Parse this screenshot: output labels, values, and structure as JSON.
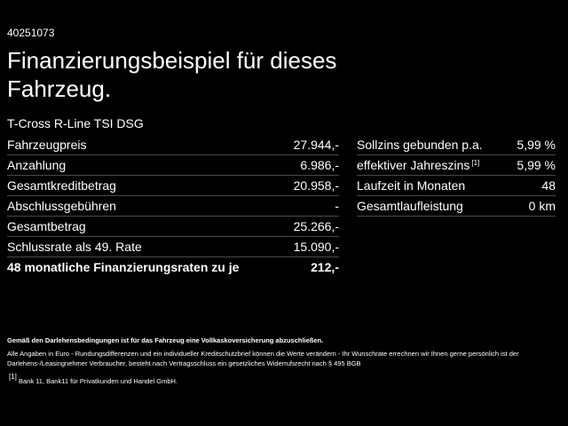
{
  "id": "40251073",
  "title": "Finanzierungsbeispiel für dieses Fahrzeug.",
  "subtitle": "T-Cross R-Line TSI DSG",
  "left_table": {
    "rows": [
      {
        "label": "Fahrzeugpreis",
        "value": "27.944,-"
      },
      {
        "label": "Anzahlung",
        "value": "6.986,-"
      },
      {
        "label": "Gesamtkreditbetrag",
        "value": "20.958,-"
      },
      {
        "label": "Abschlussgebühren",
        "value": "-"
      },
      {
        "label": "Gesamtbetrag",
        "value": "25.266,-"
      },
      {
        "label": "Schlussrate als 49. Rate",
        "value": "15.090,-"
      },
      {
        "label": "48 monatliche Finanzierungsraten zu je",
        "value": "212,-"
      }
    ]
  },
  "right_table": {
    "rows": [
      {
        "label": "Sollzins gebunden p.a.",
        "value": "5,99 %"
      },
      {
        "label": "effektiver Jahreszins",
        "footnote_ref": "[1]",
        "value": "5,99 %"
      },
      {
        "label": "Laufzeit in Monaten",
        "value": "48"
      },
      {
        "label": "Gesamtlaufleistung",
        "value": "0 km"
      }
    ]
  },
  "footer": {
    "notice": "Gemäß den Darlehensbedingungen ist für das Fahrzeug eine Vollkaskoversicherung abzuschließen.",
    "disclaimer": "Alle Angaben in Euro - Rundungsdifferenzen und ein individueller Kreditschutzbrief können die Werte verändern - Ihr Wunschrate errechnen wir Ihnen gerne persönlich ist der Darlehens-/Leasingnehmer Verbraucher, besteht nach Vertragsschluss ein gesetzliches Widerrufsrecht nach § 495 BGB",
    "footnote": {
      "marker": "[1]",
      "text": "Bank 11, Bank11 für Privatkunden und Handel GmbH."
    }
  }
}
